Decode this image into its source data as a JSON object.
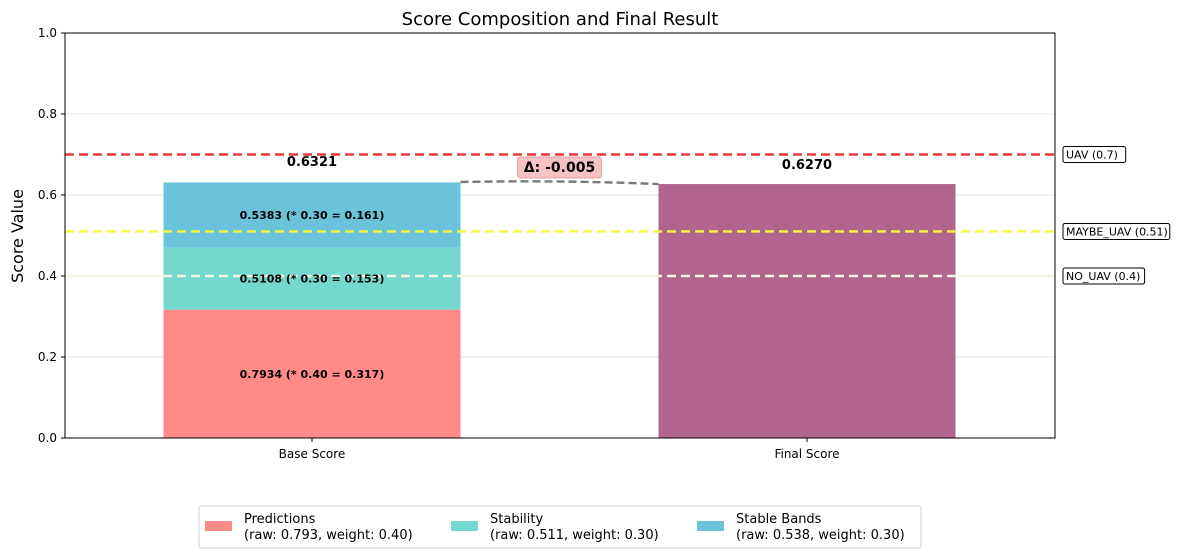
{
  "chart_data": {
    "type": "bar",
    "title": "Score Composition and Final Result",
    "xlabel": "",
    "ylabel": "Score Value",
    "ylim": [
      0,
      1.0
    ],
    "yticks": [
      "0.0",
      "0.2",
      "0.4",
      "0.6",
      "0.8",
      "1.0"
    ],
    "categories": [
      "Base Score",
      "Final Score"
    ],
    "grid": "horizontal",
    "legend_position": "bottom-center",
    "stacked_series": [
      {
        "name": "Predictions",
        "legend_detail": "(raw: 0.793, weight: 0.40)",
        "values": [
          0.317,
          0
        ],
        "label": "0.7934 (* 0.40 = 0.317)",
        "color": "#ff8a87"
      },
      {
        "name": "Stability",
        "legend_detail": "(raw: 0.511, weight: 0.30)",
        "values": [
          0.153,
          0
        ],
        "label": "0.5108 (* 0.30 = 0.153)",
        "color": "#74d8cf"
      },
      {
        "name": "Stable Bands",
        "legend_detail": "(raw: 0.538, weight: 0.30)",
        "values": [
          0.161,
          0
        ],
        "label": "0.5383 (* 0.30 = 0.161)",
        "color": "#6ac3d9"
      }
    ],
    "final_bar": {
      "value": 0.627,
      "label": "0.6270",
      "color": "#b1648c"
    },
    "base_total_label": "0.6321",
    "base_total": 0.6321,
    "delta": {
      "label": "Δ: -0.005",
      "from": 0.6321,
      "to": 0.627
    },
    "thresholds": [
      {
        "label": "UAV (0.7)",
        "value": 0.7,
        "color": "#e8393b"
      },
      {
        "label": "MAYBE_UAV (0.51)",
        "value": 0.51,
        "color": "#f7f73c"
      },
      {
        "label": "NO_UAV (0.4)",
        "value": 0.4,
        "color": "#f5f5e0"
      }
    ]
  }
}
